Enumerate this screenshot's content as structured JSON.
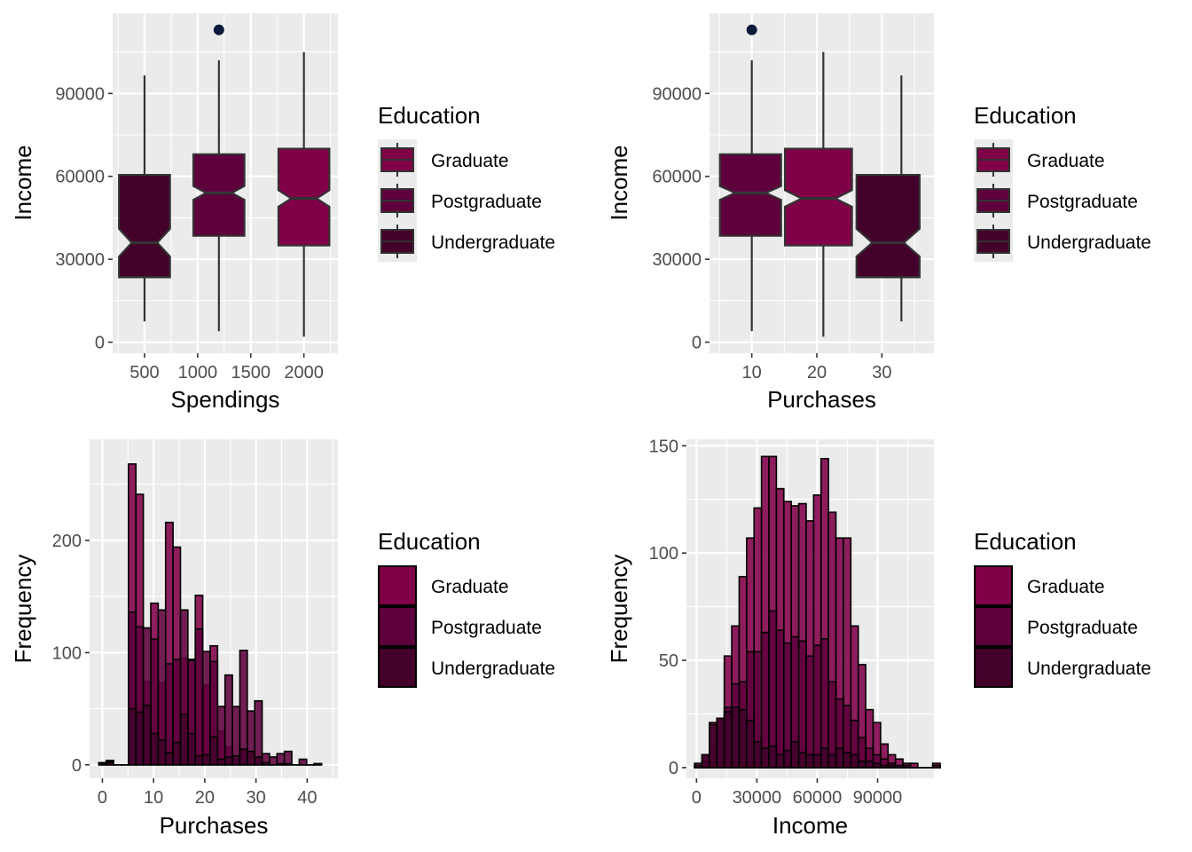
{
  "colors": {
    "Graduate": "#800048",
    "Postgraduate": "#5e003c",
    "Undergraduate": "#42002a",
    "outlier": "#0c1b3a",
    "panel": "#ebebeb",
    "grid": "#ffffff"
  },
  "legend": {
    "title": "Education",
    "items": [
      "Graduate",
      "Postgraduate",
      "Undergraduate"
    ]
  },
  "chart_data": [
    {
      "type": "boxplot",
      "notched": true,
      "xlabel": "Spendings",
      "ylabel": "Income",
      "xlim": [
        200,
        2320
      ],
      "ylim": [
        -4000,
        119000
      ],
      "xticks": [
        500,
        1000,
        1500,
        2000
      ],
      "xtick_labels": [
        "500",
        "1000",
        "1500",
        "2000"
      ],
      "yticks": [
        0,
        30000,
        60000,
        90000
      ],
      "ytick_labels": [
        "0",
        "30000",
        "60000",
        "90000"
      ],
      "boxes": [
        {
          "group": "Undergraduate",
          "x": 500,
          "x_range": [
            260,
            740
          ],
          "whisker_low": 7500,
          "q1": 23500,
          "median": 36000,
          "q3": 60500,
          "whisker_high": 96500,
          "notch": [
            31000,
            41000
          ],
          "outliers": []
        },
        {
          "group": "Postgraduate",
          "x": 1200,
          "x_range": [
            960,
            1440
          ],
          "whisker_low": 4000,
          "q1": 38500,
          "median": 54000,
          "q3": 68000,
          "whisker_high": 102000,
          "notch": [
            51500,
            56500
          ],
          "outliers": [
            113000
          ]
        },
        {
          "group": "Graduate",
          "x": 2000,
          "x_range": [
            1760,
            2240
          ],
          "whisker_low": 2000,
          "q1": 35000,
          "median": 52000,
          "q3": 70000,
          "whisker_high": 105000,
          "notch": [
            49000,
            55000
          ],
          "outliers": []
        }
      ]
    },
    {
      "type": "boxplot",
      "notched": true,
      "xlabel": "Purchases",
      "ylabel": "Income",
      "xlim": [
        3.5,
        38
      ],
      "ylim": [
        -4000,
        119000
      ],
      "xticks": [
        10,
        20,
        30
      ],
      "xtick_labels": [
        "10",
        "20",
        "30"
      ],
      "yticks": [
        0,
        30000,
        60000,
        90000
      ],
      "ytick_labels": [
        "0",
        "30000",
        "60000",
        "90000"
      ],
      "boxes": [
        {
          "group": "Postgraduate",
          "x": 10,
          "x_range": [
            5.1,
            14.5
          ],
          "whisker_low": 4000,
          "q1": 38500,
          "median": 54000,
          "q3": 68000,
          "whisker_high": 102000,
          "notch": [
            51500,
            56500
          ],
          "outliers": [
            113000
          ]
        },
        {
          "group": "Graduate",
          "x": 21,
          "x_range": [
            15.1,
            25.4
          ],
          "whisker_low": 2000,
          "q1": 35000,
          "median": 52000,
          "q3": 70000,
          "whisker_high": 105000,
          "notch": [
            49000,
            55000
          ],
          "outliers": []
        },
        {
          "group": "Undergraduate",
          "x": 33,
          "x_range": [
            26.1,
            35.8
          ],
          "whisker_low": 7500,
          "q1": 23500,
          "median": 36000,
          "q3": 60500,
          "whisker_high": 96500,
          "notch": [
            31000,
            41000
          ],
          "outliers": []
        }
      ]
    },
    {
      "type": "histogram",
      "stacked": false,
      "xlabel": "Purchases",
      "ylabel": "Frequency",
      "xlim": [
        -2.5,
        46
      ],
      "ylim": [
        -12,
        290
      ],
      "xticks": [
        0,
        10,
        20,
        30,
        40
      ],
      "xtick_labels": [
        "0",
        "10",
        "20",
        "30",
        "40"
      ],
      "yticks": [
        0,
        100,
        200
      ],
      "ytick_labels": [
        "0",
        "100",
        "200"
      ],
      "bin_start": -0.7,
      "bin_width": 1.45,
      "series": [
        {
          "name": "Graduate",
          "values": [
            2,
            4,
            0,
            0,
            268,
            241,
            74,
            144,
            73,
            216,
            194,
            95,
            94,
            151,
            71,
            106,
            30,
            16,
            5,
            2,
            0,
            1,
            0,
            0,
            0,
            0,
            0,
            0,
            0,
            1
          ]
        },
        {
          "name": "Postgraduate",
          "values": [
            2,
            3,
            0,
            0,
            136,
            123,
            122,
            112,
            138,
            90,
            94,
            138,
            93,
            121,
            101,
            92,
            52,
            80,
            52,
            102,
            48,
            57,
            10,
            7,
            10,
            12,
            0,
            5,
            0,
            1
          ]
        },
        {
          "name": "Undergraduate",
          "values": [
            1,
            2,
            0,
            0,
            50,
            47,
            53,
            28,
            22,
            11,
            20,
            45,
            28,
            8,
            9,
            25,
            5,
            7,
            8,
            14,
            12,
            7,
            2,
            0,
            1,
            1,
            0,
            0,
            0,
            1
          ]
        }
      ]
    },
    {
      "type": "histogram",
      "stacked": false,
      "xlabel": "Income",
      "ylabel": "Frequency",
      "xlim": [
        -5000,
        118000
      ],
      "ylim": [
        -5,
        153
      ],
      "xticks": [
        0,
        30000,
        60000,
        90000
      ],
      "xtick_labels": [
        "0",
        "30000",
        "60000",
        "90000"
      ],
      "yticks": [
        0,
        50,
        100,
        150
      ],
      "ytick_labels": [
        "0",
        "50",
        "100",
        "150"
      ],
      "bin_start": -1000,
      "bin_width": 3700,
      "series": [
        {
          "name": "Graduate",
          "values": [
            2,
            6,
            21,
            19,
            52,
            66,
            89,
            107,
            121,
            145,
            145,
            130,
            124,
            122,
            123,
            115,
            127,
            144,
            119,
            107,
            107,
            66,
            48,
            27,
            21,
            11,
            6,
            4,
            2,
            2,
            0,
            0,
            2
          ]
        },
        {
          "name": "Postgraduate",
          "values": [
            1,
            3,
            10,
            23,
            28,
            39,
            40,
            54,
            54,
            63,
            73,
            64,
            58,
            61,
            59,
            52,
            57,
            60,
            40,
            32,
            29,
            22,
            14,
            9,
            6,
            4,
            2,
            1,
            1,
            0,
            0,
            0,
            1
          ]
        },
        {
          "name": "Undergraduate",
          "values": [
            0,
            6,
            20,
            23,
            26,
            28,
            27,
            22,
            12,
            9,
            10,
            6,
            8,
            12,
            7,
            6,
            6,
            9,
            6,
            9,
            7,
            6,
            3,
            3,
            2,
            1,
            1,
            0,
            0,
            0,
            0,
            0,
            0
          ]
        }
      ]
    }
  ]
}
